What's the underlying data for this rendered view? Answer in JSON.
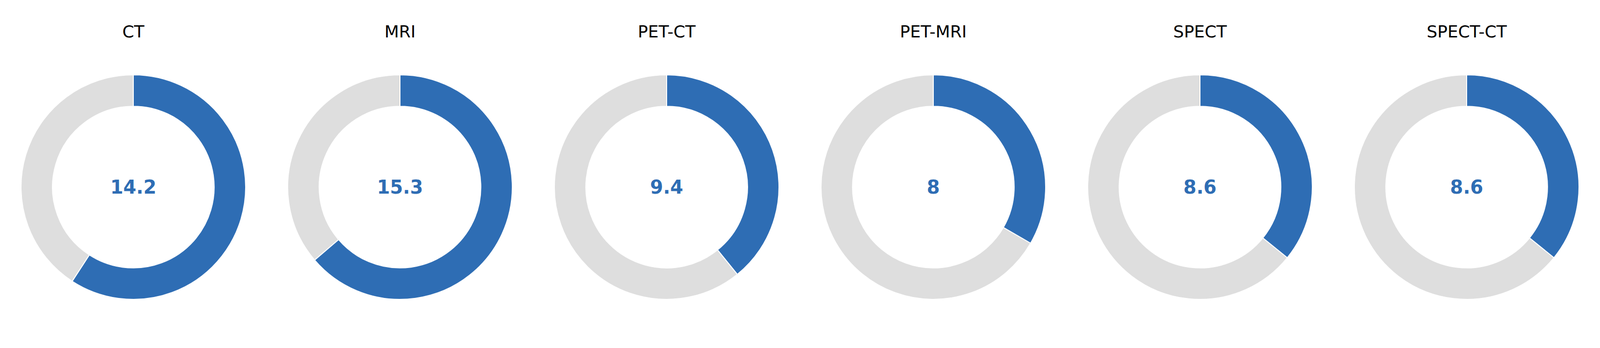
{
  "chart_data": [
    {
      "type": "pie",
      "title": "CT",
      "values": [
        14.2,
        9.8
      ],
      "colors": [
        "#2E6DB4",
        "#DEDEDE"
      ]
    },
    {
      "type": "pie",
      "title": "MRI",
      "values": [
        15.3,
        8.7
      ],
      "colors": [
        "#2E6DB4",
        "#DEDEDE"
      ]
    },
    {
      "type": "pie",
      "title": "PET-CT",
      "values": [
        9.4,
        14.6
      ],
      "colors": [
        "#2E6DB4",
        "#DEDEDE"
      ]
    },
    {
      "type": "pie",
      "title": "PET-MRI",
      "values": [
        8.0,
        16
      ],
      "colors": [
        "#2E6DB4",
        "#DEDEDE"
      ]
    },
    {
      "type": "pie",
      "title": "SPECT",
      "values": [
        8.6,
        15.4
      ],
      "colors": [
        "#2E6DB4",
        "#DEDEDE"
      ]
    },
    {
      "type": "pie",
      "title": "SPECT-CT",
      "values": [
        8.6,
        15.4
      ],
      "colors": [
        "#2E6DB4",
        "#DEDEDE"
      ]
    }
  ]
}
